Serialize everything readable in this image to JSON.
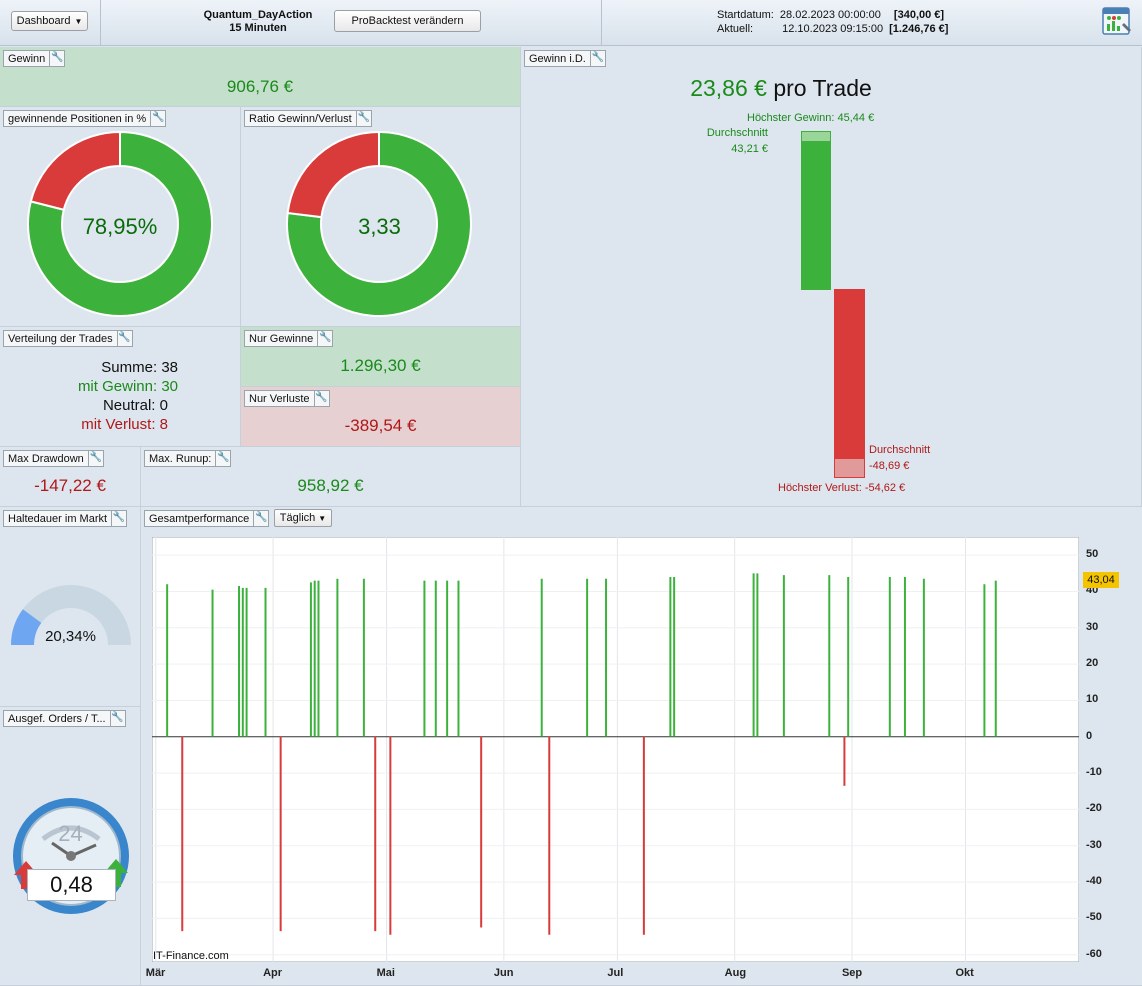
{
  "topbar": {
    "dashboard_label": "Dashboard",
    "strategy_name": "Quantum_DayAction",
    "timeframe": "15 Minuten",
    "modify_button": "ProBacktest verändern",
    "start_label": "Startdatum:",
    "start_value": "28.02.2023 00:00:00",
    "start_capital": "[340,00 €]",
    "current_label": "Aktuell:",
    "current_value": "12.10.2023 09:15:00",
    "current_capital": "[1.246,76 €]"
  },
  "gewinn": {
    "label": "Gewinn",
    "value": "906,76 €"
  },
  "win_pct": {
    "label": "gewinnende Positionen in %",
    "value": "78,95%",
    "fraction": 0.7895
  },
  "ratio": {
    "label": "Ratio Gewinn/Verlust",
    "value": "3,33",
    "fraction": 0.769
  },
  "distribution": {
    "label": "Verteilung der Trades",
    "total_label": "Summe:",
    "total": "38",
    "win_label": "mit Gewinn:",
    "win": "30",
    "neutral_label": "Neutral:",
    "neutral": "0",
    "loss_label": "mit Verlust:",
    "loss": "8"
  },
  "only_gains": {
    "label": "Nur Gewinne",
    "value": "1.296,30 €"
  },
  "only_losses": {
    "label": "Nur Verluste",
    "value": "-389,54 €"
  },
  "max_drawdown": {
    "label": "Max Drawdown",
    "value": "-147,22 €"
  },
  "max_runup": {
    "label": "Max. Runup:",
    "value": "958,92 €"
  },
  "avg_trade": {
    "label": "Gewinn i.D.",
    "value": "23,86 €",
    "suffix": "pro Trade",
    "max_gain_label": "Höchster Gewinn: 45,44 €",
    "avg_gain_title": "Durchschnitt",
    "avg_gain_value": "43,21 €",
    "avg_loss_title": "Durchschnitt",
    "avg_loss_value": "-48,69 €",
    "max_loss_label": "Höchster Verlust: -54,62 €"
  },
  "holding": {
    "label": "Haltedauer im Markt",
    "value": "20,34%",
    "fraction": 0.2034
  },
  "orders": {
    "label": "Ausgef. Orders / T...",
    "clock_number": "24",
    "value": "0,48"
  },
  "performance": {
    "label": "Gesamtperformance",
    "period": "Täglich",
    "watermark": "IT-Finance.com",
    "last_value_badge": "43,04"
  },
  "colors": {
    "green": "#3cb23c",
    "red": "#d93a3a",
    "green_panel": "#c4e0cc",
    "red_panel": "#e6d0d2"
  },
  "chart_data": {
    "type": "bar",
    "title": "",
    "xlabel": "",
    "ylabel": "",
    "x_domain": [
      "2023-02-28",
      "2023-10-31"
    ],
    "ylim": [
      -62,
      55
    ],
    "yticks": [
      50,
      40,
      30,
      20,
      10,
      0,
      -10,
      -20,
      -30,
      -40,
      -50,
      -60
    ],
    "xticks": [
      "Mär",
      "Apr",
      "Mai",
      "Jun",
      "Jul",
      "Aug",
      "Sep",
      "Okt"
    ],
    "xtick_dates": [
      "2023-03-01",
      "2023-04-01",
      "2023-05-01",
      "2023-06-01",
      "2023-07-01",
      "2023-08-01",
      "2023-09-01",
      "2023-10-01"
    ],
    "grid": true,
    "bars": [
      {
        "date": "2023-03-04",
        "value": 42.0
      },
      {
        "date": "2023-03-08",
        "value": -53.5
      },
      {
        "date": "2023-03-16",
        "value": 40.5
      },
      {
        "date": "2023-03-23",
        "value": 41.5
      },
      {
        "date": "2023-03-24",
        "value": 41.0
      },
      {
        "date": "2023-03-25",
        "value": 41.0
      },
      {
        "date": "2023-03-30",
        "value": 41.0
      },
      {
        "date": "2023-04-03",
        "value": -53.5
      },
      {
        "date": "2023-04-11",
        "value": 42.5
      },
      {
        "date": "2023-04-12",
        "value": 43.0
      },
      {
        "date": "2023-04-13",
        "value": 43.0
      },
      {
        "date": "2023-04-18",
        "value": 43.5
      },
      {
        "date": "2023-04-25",
        "value": 43.5
      },
      {
        "date": "2023-04-28",
        "value": -53.5
      },
      {
        "date": "2023-05-02",
        "value": -54.5
      },
      {
        "date": "2023-05-11",
        "value": 43.0
      },
      {
        "date": "2023-05-14",
        "value": 43.0
      },
      {
        "date": "2023-05-17",
        "value": 43.0
      },
      {
        "date": "2023-05-20",
        "value": 43.0
      },
      {
        "date": "2023-05-26",
        "value": -52.5
      },
      {
        "date": "2023-06-11",
        "value": 43.5
      },
      {
        "date": "2023-06-13",
        "value": -54.5
      },
      {
        "date": "2023-06-23",
        "value": 43.5
      },
      {
        "date": "2023-06-28",
        "value": 43.5
      },
      {
        "date": "2023-07-08",
        "value": -54.5
      },
      {
        "date": "2023-07-15",
        "value": 44.0
      },
      {
        "date": "2023-07-16",
        "value": 44.0
      },
      {
        "date": "2023-08-06",
        "value": 45.0
      },
      {
        "date": "2023-08-07",
        "value": 45.0
      },
      {
        "date": "2023-08-14",
        "value": 44.5
      },
      {
        "date": "2023-08-26",
        "value": 44.5
      },
      {
        "date": "2023-08-30",
        "value": -13.5
      },
      {
        "date": "2023-08-31",
        "value": 44.0
      },
      {
        "date": "2023-09-11",
        "value": 44.0
      },
      {
        "date": "2023-09-15",
        "value": 44.0
      },
      {
        "date": "2023-09-20",
        "value": 43.5
      },
      {
        "date": "2023-10-06",
        "value": 42.0
      },
      {
        "date": "2023-10-09",
        "value": 43.0
      }
    ]
  }
}
